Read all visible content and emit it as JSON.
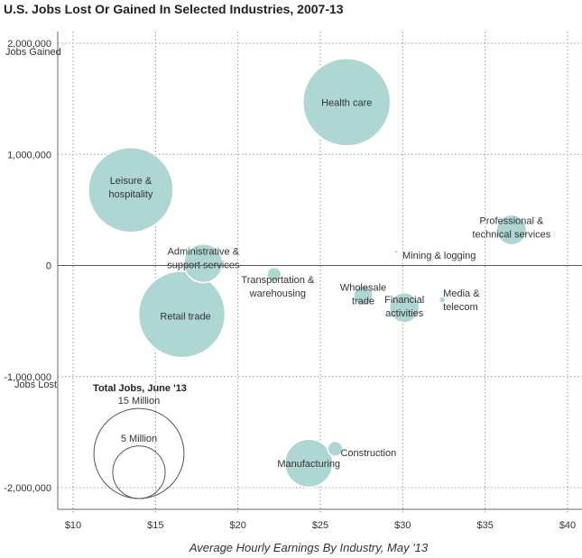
{
  "chart_data": {
    "type": "scatter",
    "title": "U.S. Jobs Lost Or Gained In Selected Industries, 2007-13",
    "xlabel": "Average Hourly Earnings By Industry, May '13",
    "ylabel_top": "Jobs Gained",
    "ylabel_bottom": "Jobs Lost",
    "xlim": [
      9,
      41
    ],
    "ylim": [
      -2150000,
      2050000
    ],
    "x_ticks": [
      10,
      15,
      20,
      25,
      30,
      35,
      40
    ],
    "x_tick_labels": [
      "$10",
      "$15",
      "$20",
      "$25",
      "$30",
      "$35",
      "$40"
    ],
    "y_ticks": [
      2000000,
      1000000,
      0,
      -1000000,
      -2000000
    ],
    "y_tick_labels": [
      "2,000,000",
      "1,000,000",
      "0",
      "-1,000,000",
      "-2,000,000"
    ],
    "grid": "vertical-dotted",
    "bubble_color": "#aed6d3",
    "size_metric": "Total Jobs, June '13 (millions)",
    "points": [
      {
        "name": "Health care",
        "label_lines": [
          "Health care"
        ],
        "x": 26.6,
        "y": 1470000,
        "size": 15.3
      },
      {
        "name": "Leisure & hospitality",
        "label_lines": [
          "Leisure &",
          "hospitality"
        ],
        "x": 13.5,
        "y": 680000,
        "size": 14.4
      },
      {
        "name": "Retail trade",
        "label_lines": [
          "Retail trade"
        ],
        "x": 16.6,
        "y": -440000,
        "size": 15.0
      },
      {
        "name": "Administrative & support services",
        "label_lines": [
          "Administrative &",
          "support services"
        ],
        "x": 17.9,
        "y": 20000,
        "size": 3.0
      },
      {
        "name": "Transportation & warehousing",
        "label_lines": [
          "Transportation &",
          "warehousing"
        ],
        "x": 22.2,
        "y": -80000,
        "size": 0.4
      },
      {
        "name": "Professional & technical services",
        "label_lines": [
          "Professional &",
          "technical services"
        ],
        "x": 36.6,
        "y": 320000,
        "size": 1.8
      },
      {
        "name": "Mining & logging",
        "label_lines": [
          "Mining & logging"
        ],
        "x": 29.6,
        "y": 125000,
        "size": 0.012
      },
      {
        "name": "Wholesale trade",
        "label_lines": [
          "Wholesale",
          "trade"
        ],
        "x": 27.6,
        "y": -270000,
        "size": 0.75
      },
      {
        "name": "Financial activities",
        "label_lines": [
          "Financial",
          "activities"
        ],
        "x": 30.1,
        "y": -380000,
        "size": 1.8
      },
      {
        "name": "Media & telecom",
        "label_lines": [
          "Media &",
          "telecom"
        ],
        "x": 32.4,
        "y": -310000,
        "size": 0.08
      },
      {
        "name": "Construction",
        "label_lines": [
          "Construction"
        ],
        "x": 25.9,
        "y": -1650000,
        "size": 0.45
      },
      {
        "name": "Manufacturing",
        "label_lines": [
          "Manufacturing"
        ],
        "x": 24.3,
        "y": -1780000,
        "size": 4.6
      }
    ],
    "legend": {
      "title": "Total Jobs, June '13",
      "items": [
        {
          "label": "15 Million",
          "size": 15
        },
        {
          "label": "5 Million",
          "size": 5
        }
      ]
    }
  }
}
